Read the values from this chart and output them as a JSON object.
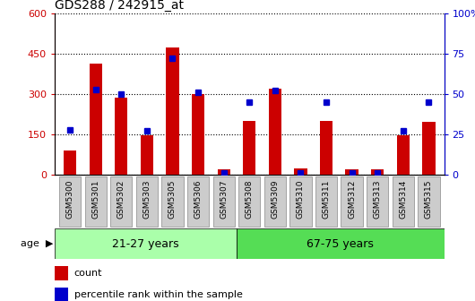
{
  "title": "GDS288 / 242915_at",
  "categories": [
    "GSM5300",
    "GSM5301",
    "GSM5302",
    "GSM5303",
    "GSM5305",
    "GSM5306",
    "GSM5307",
    "GSM5308",
    "GSM5309",
    "GSM5310",
    "GSM5311",
    "GSM5312",
    "GSM5313",
    "GSM5314",
    "GSM5315"
  ],
  "counts": [
    90,
    415,
    285,
    148,
    475,
    300,
    18,
    200,
    320,
    22,
    200,
    18,
    18,
    145,
    195
  ],
  "percentiles": [
    28,
    53,
    50,
    27,
    72,
    51,
    1,
    45,
    52,
    1,
    45,
    1,
    1,
    27,
    45
  ],
  "group1_label": "21-27 years",
  "group2_label": "67-75 years",
  "group1_count": 7,
  "ylim_left": [
    0,
    600
  ],
  "ylim_right": [
    0,
    100
  ],
  "yticks_left": [
    0,
    150,
    300,
    450,
    600
  ],
  "ytick_labels_left": [
    "0",
    "150",
    "300",
    "450",
    "600"
  ],
  "yticks_right": [
    0,
    25,
    50,
    75,
    100
  ],
  "ytick_labels_right": [
    "0",
    "25",
    "50",
    "75",
    "100%"
  ],
  "bar_color": "#cc0000",
  "dot_color": "#0000cc",
  "group1_bg": "#aaffaa",
  "group2_bg": "#55dd55",
  "tick_box_color": "#cccccc",
  "tick_box_edge": "#888888"
}
